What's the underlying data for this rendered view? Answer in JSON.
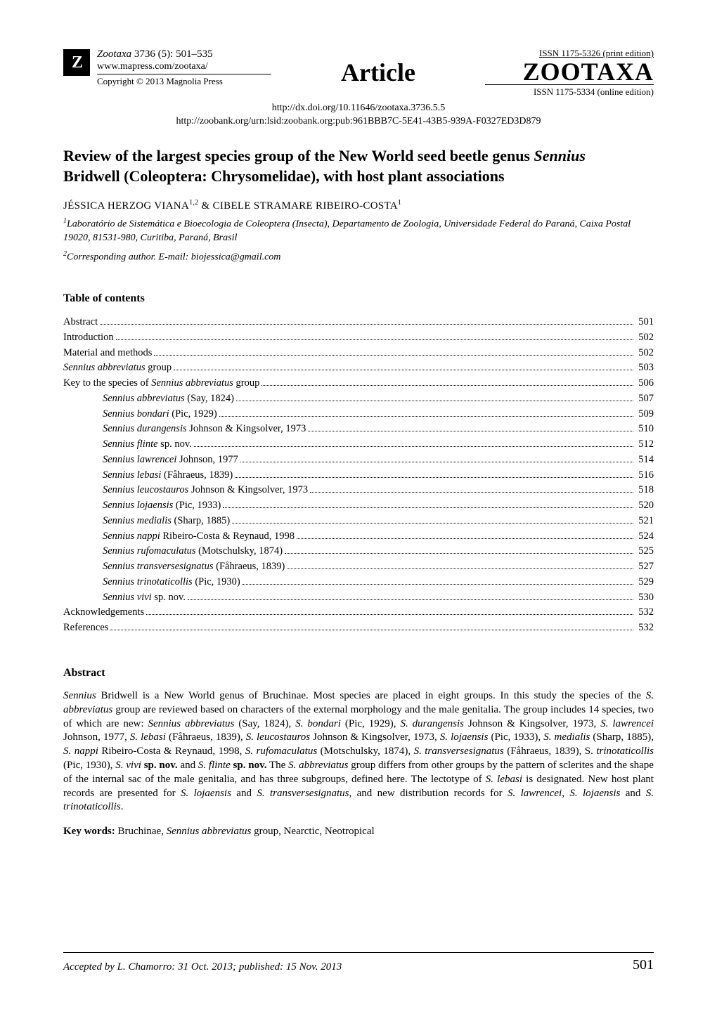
{
  "header": {
    "journal_name": "Zootaxa",
    "issue_ref": "3736 (5): 501–535",
    "journal_url": "www.mapress.com/zootaxa/",
    "copyright": "Copyright © 2013 Magnolia Press",
    "article_label": "Article",
    "issn_print": "ISSN 1175-5326  (print edition)",
    "zootaxa_logo": "ZOOTAXA",
    "issn_online": "ISSN 1175-5334 (online edition)",
    "doi_line": "http://dx.doi.org/10.11646/zootaxa.3736.5.5",
    "zoobank_line": "http://zoobank.org/urn:lsid:zoobank.org:pub:961BBB7C-5E41-43B5-939A-F0327ED3D879"
  },
  "title": {
    "line1_pre": "Review of the largest species group of the New World seed beetle genus ",
    "line1_genus": "Sennius",
    "line2": "Bridwell (Coleoptera: Chrysomelidae), with host plant associations"
  },
  "authors": {
    "a1_name": "JÉSSICA HERZOG VIANA",
    "a1_sup": "1,2",
    "amp": " & ",
    "a2_name": "CIBELE STRAMARE RIBEIRO-COSTA",
    "a2_sup": "1"
  },
  "affiliations": {
    "aff1_sup": "1",
    "aff1_text": "Laboratório de Sistemática e Bioecologia de Coleoptera (Insecta), Departamento de Zoologia, Universidade Federal do Paraná, Caixa Postal 19020, 81531-980, Curitiba, Paraná, Brasil",
    "aff2_sup": "2",
    "aff2_text": "Corresponding author. E-mail: biojessica@gmail.com"
  },
  "toc_heading": "Table of contents",
  "toc": [
    {
      "label_pre": "Abstract",
      "label_ital": "",
      "label_post": "",
      "page": "501",
      "indent": false
    },
    {
      "label_pre": "Introduction",
      "label_ital": "",
      "label_post": "",
      "page": "502",
      "indent": false
    },
    {
      "label_pre": "Material and methods",
      "label_ital": "",
      "label_post": "",
      "page": "502",
      "indent": false
    },
    {
      "label_pre": "",
      "label_ital": "Sennius abbreviatus",
      "label_post": " group",
      "page": "503",
      "indent": false
    },
    {
      "label_pre": "Key to the species of ",
      "label_ital": "Sennius abbreviatus",
      "label_post": " group",
      "page": "506",
      "indent": false
    },
    {
      "label_pre": "",
      "label_ital": "Sennius abbreviatus",
      "label_post": " (Say, 1824)",
      "page": "507",
      "indent": true
    },
    {
      "label_pre": "",
      "label_ital": "Sennius bondari",
      "label_post": " (Pic, 1929)",
      "page": "509",
      "indent": true
    },
    {
      "label_pre": "",
      "label_ital": "Sennius durangensis",
      "label_post": " Johnson & Kingsolver, 1973",
      "page": "510",
      "indent": true
    },
    {
      "label_pre": "",
      "label_ital": "Sennius flinte",
      "label_post": " sp. nov.",
      "page": "512",
      "indent": true
    },
    {
      "label_pre": "",
      "label_ital": "Sennius lawrencei",
      "label_post": " Johnson, 1977",
      "page": "514",
      "indent": true
    },
    {
      "label_pre": "",
      "label_ital": "Sennius lebasi",
      "label_post": " (Fåhraeus, 1839)",
      "page": "516",
      "indent": true
    },
    {
      "label_pre": "",
      "label_ital": "Sennius leucostauros",
      "label_post": " Johnson & Kingsolver, 1973",
      "page": "518",
      "indent": true
    },
    {
      "label_pre": "",
      "label_ital": "Sennius lojaensis",
      "label_post": " (Pic, 1933)",
      "page": "520",
      "indent": true
    },
    {
      "label_pre": "",
      "label_ital": "Sennius medialis",
      "label_post": " (Sharp, 1885)",
      "page": "521",
      "indent": true
    },
    {
      "label_pre": "",
      "label_ital": "Sennius nappi",
      "label_post": " Ribeiro-Costa & Reynaud, 1998",
      "page": "524",
      "indent": true
    },
    {
      "label_pre": "",
      "label_ital": "Sennius rufomaculatus",
      "label_post": " (Motschulsky, 1874)",
      "page": "525",
      "indent": true
    },
    {
      "label_pre": "",
      "label_ital": "Sennius transversesignatus",
      "label_post": " (Fåhraeus, 1839)",
      "page": "527",
      "indent": true
    },
    {
      "label_pre": "",
      "label_ital": "Sennius trinotaticollis",
      "label_post": " (Pic, 1930)",
      "page": "529",
      "indent": true
    },
    {
      "label_pre": "",
      "label_ital": "Sennius vivi",
      "label_post": " sp. nov.",
      "page": "530",
      "indent": true
    },
    {
      "label_pre": "Acknowledgements",
      "label_ital": "",
      "label_post": "",
      "page": "532",
      "indent": false
    },
    {
      "label_pre": "References",
      "label_ital": "",
      "label_post": "",
      "page": "532",
      "indent": false
    }
  ],
  "abstract_heading": "Abstract",
  "abstract_runs": [
    {
      "t": "Sennius",
      "i": true
    },
    {
      "t": " Bridwell is a New World genus of Bruchinae. Most species are placed in eight groups. In this study the species of the ",
      "i": false
    },
    {
      "t": "S. abbreviatus",
      "i": true
    },
    {
      "t": " group are reviewed based on characters of the external morphology and the male genitalia. The group includes 14 species, two of which are new: ",
      "i": false
    },
    {
      "t": "Sennius abbreviatus",
      "i": true
    },
    {
      "t": " (Say, 1824), ",
      "i": false
    },
    {
      "t": "S. bondari",
      "i": true
    },
    {
      "t": " (Pic, 1929), ",
      "i": false
    },
    {
      "t": "S. durangensis",
      "i": true
    },
    {
      "t": " Johnson & Kingsolver, 1973, ",
      "i": false
    },
    {
      "t": "S. lawrencei",
      "i": true
    },
    {
      "t": " Johnson, 1977, ",
      "i": false
    },
    {
      "t": "S. lebasi",
      "i": true
    },
    {
      "t": " (Fåhraeus, 1839), ",
      "i": false
    },
    {
      "t": "S. leucostauros",
      "i": true
    },
    {
      "t": " Johnson & Kingsolver, 1973",
      "i": false
    },
    {
      "t": ", S. lojaensis",
      "i": true
    },
    {
      "t": " (Pic, 1933), ",
      "i": false
    },
    {
      "t": "S. medialis",
      "i": true
    },
    {
      "t": " (Sharp, 1885), ",
      "i": false
    },
    {
      "t": "S. nappi",
      "i": true
    },
    {
      "t": " Ribeiro-Costa & Reynaud, 1998, ",
      "i": false
    },
    {
      "t": "S. rufomaculatus",
      "i": true
    },
    {
      "t": " (Motschulsky, 1874)",
      "i": false
    },
    {
      "t": ", S. transversesignatus",
      "i": true
    },
    {
      "t": " (Fåhraeus, 1839)",
      "i": false
    },
    {
      "t": ", ",
      "i": false
    },
    {
      "t": "S. ",
      "i": false
    },
    {
      "t": "trinotaticollis",
      "i": true
    },
    {
      "t": " (Pic, 1930), ",
      "i": false
    },
    {
      "t": "S. vivi ",
      "i": true
    },
    {
      "t": "sp. nov.",
      "b": true
    },
    {
      "t": " and ",
      "i": false
    },
    {
      "t": "S. flinte ",
      "i": true
    },
    {
      "t": "sp. nov.",
      "b": true
    },
    {
      "t": " The ",
      "i": false
    },
    {
      "t": "S. abbreviatus",
      "i": true
    },
    {
      "t": " group differs from other groups by the pattern of sclerites and the shape of the internal sac of the male genitalia, and has three subgroups, defined here. The lectotype of ",
      "i": false
    },
    {
      "t": "S. lebasi",
      "i": true
    },
    {
      "t": " is designated. New host plant records are presented for ",
      "i": false
    },
    {
      "t": "S. lojaensis",
      "i": true
    },
    {
      "t": " and ",
      "i": false
    },
    {
      "t": "S. transversesignatus",
      "i": true
    },
    {
      "t": ", and new distribution records for ",
      "i": false
    },
    {
      "t": "S. lawrencei",
      "i": true
    },
    {
      "t": ", ",
      "i": false
    },
    {
      "t": "S. lojaensis",
      "i": true
    },
    {
      "t": " and ",
      "i": false
    },
    {
      "t": "S. trinotaticollis",
      "i": true
    },
    {
      "t": ".",
      "i": false
    }
  ],
  "keywords": {
    "label": "Key words:",
    "runs": [
      {
        "t": " Bruchinae, ",
        "i": false
      },
      {
        "t": "Sennius abbreviatus",
        "i": true
      },
      {
        "t": " group, Nearctic, Neotropical",
        "i": false
      }
    ]
  },
  "footer": {
    "accepted": "Accepted by L. Chamorro: 31 Oct. 2013; published: 15 Nov. 2013",
    "page_number": "501"
  },
  "style": {
    "page_bg": "#ffffff",
    "text_color": "#000000",
    "rule_color": "#000000",
    "font_family": "Times New Roman, Times, serif",
    "title_fontsize_pt": 16,
    "body_fontsize_pt": 11,
    "article_label_fontsize_pt": 27,
    "zootaxa_logo_fontsize_pt": 27
  }
}
